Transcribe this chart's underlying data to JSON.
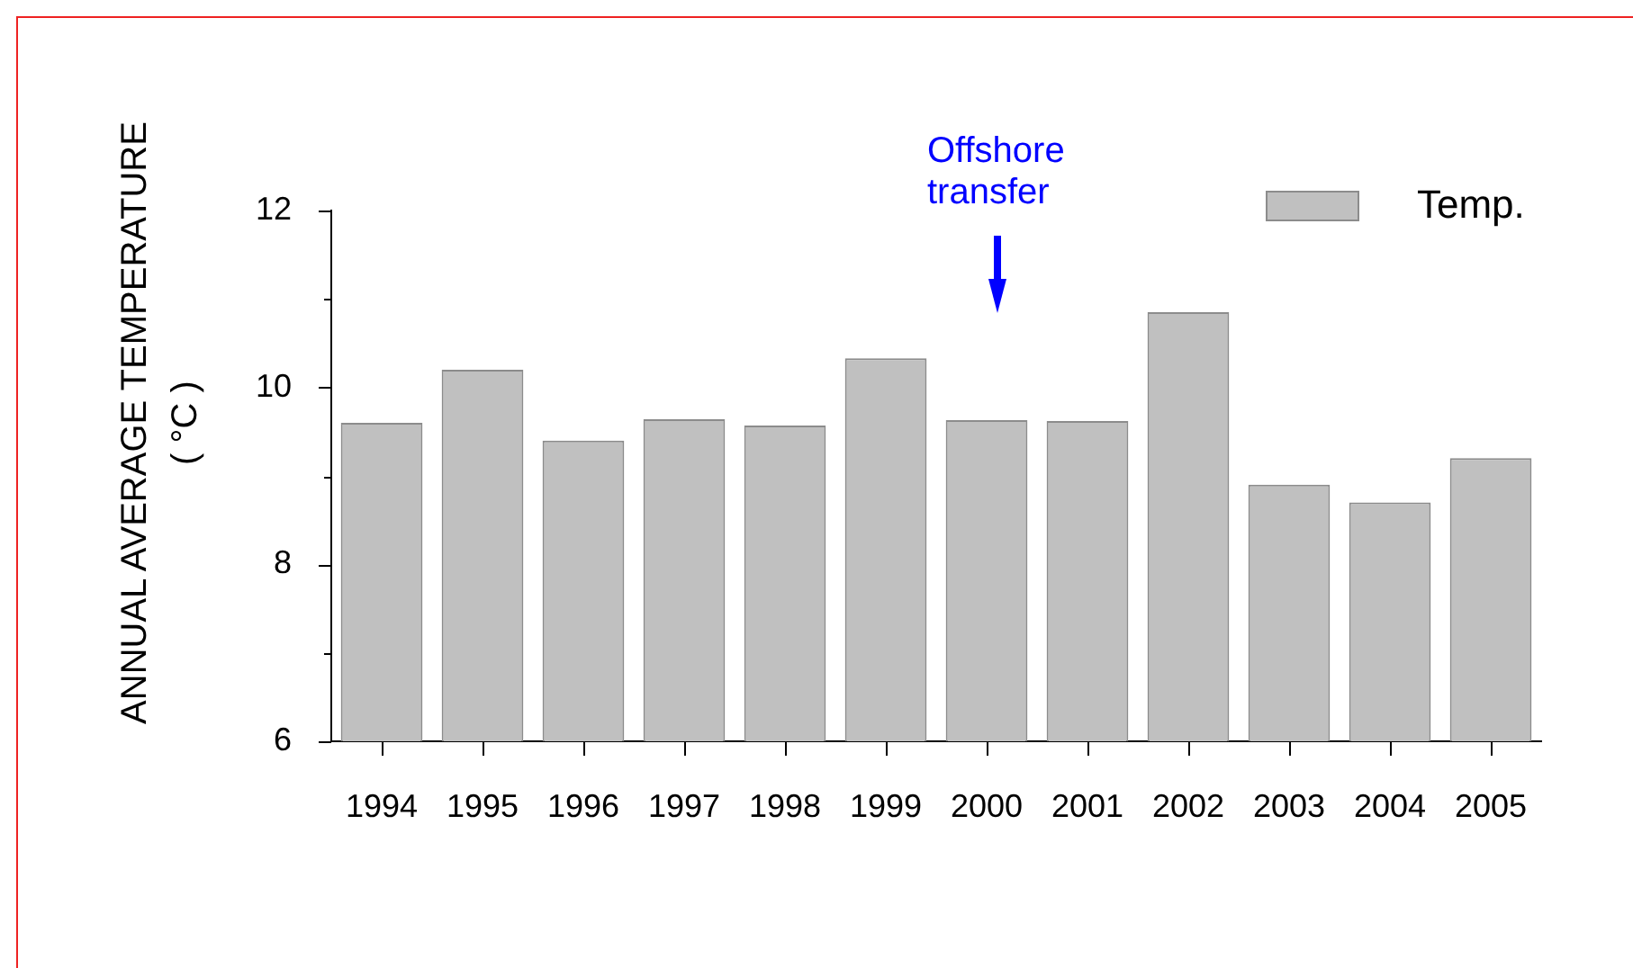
{
  "chart_data": {
    "type": "bar",
    "ylabel": "ANNUAL AVERAGE TEMPERATURE\n( °C )",
    "categories": [
      "1994",
      "1995",
      "1996",
      "1997",
      "1998",
      "1999",
      "2000",
      "2001",
      "2002",
      "2003",
      "2004",
      "2005"
    ],
    "series": [
      {
        "name": "Temp.",
        "color": "#c0c0c0",
        "values": [
          9.6,
          10.2,
          9.4,
          9.64,
          9.57,
          10.33,
          9.63,
          9.62,
          10.85,
          8.9,
          8.7,
          9.2
        ]
      }
    ],
    "ylim": [
      6,
      12
    ],
    "yticks": [
      6,
      {
        "value": 7,
        "label": null
      },
      8,
      {
        "value": 9,
        "label": null
      },
      10,
      {
        "value": 11,
        "label": null
      },
      12
    ],
    "legend": "top right",
    "annotations": [
      "Offshore transfer"
    ]
  }
}
